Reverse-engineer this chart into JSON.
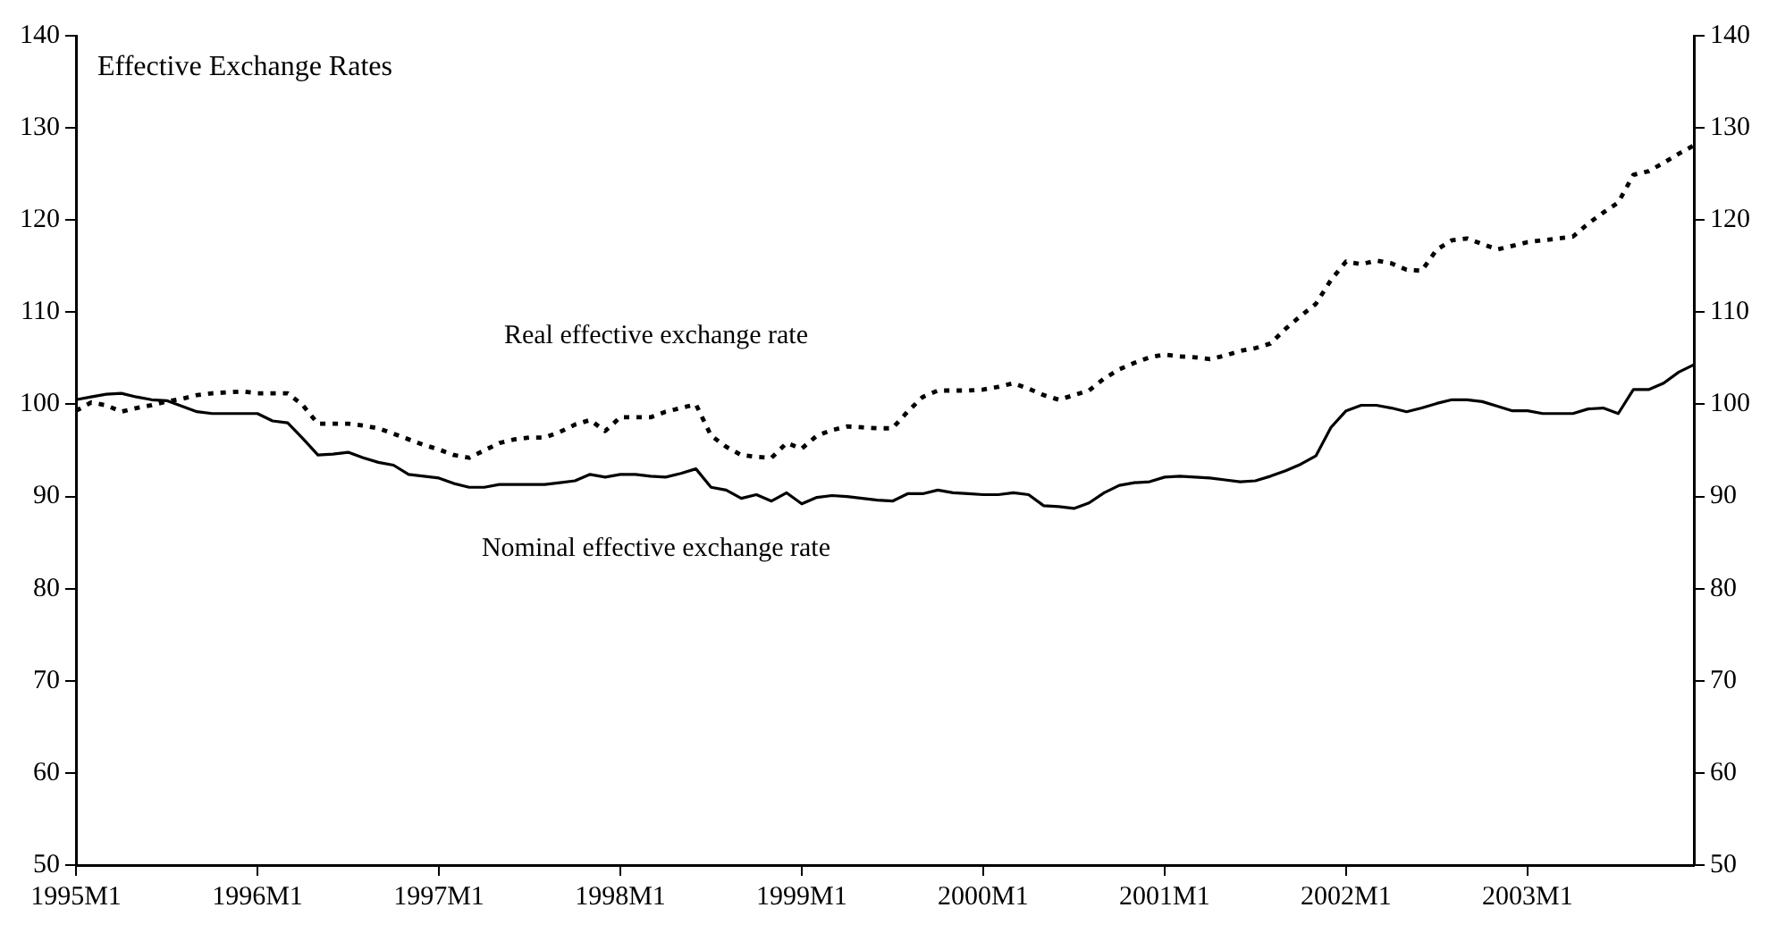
{
  "chart_data": {
    "type": "line",
    "title": "Effective Exchange Rates",
    "categories": [
      "1995M1",
      null,
      null,
      null,
      null,
      null,
      null,
      null,
      null,
      null,
      null,
      null,
      "1996M1",
      null,
      null,
      null,
      null,
      null,
      null,
      null,
      null,
      null,
      null,
      null,
      "1997M1",
      null,
      null,
      null,
      null,
      null,
      null,
      null,
      null,
      null,
      null,
      null,
      "1998M1",
      null,
      null,
      null,
      null,
      null,
      null,
      null,
      null,
      null,
      null,
      null,
      "1999M1",
      null,
      null,
      null,
      null,
      null,
      null,
      null,
      null,
      null,
      null,
      null,
      "2000M1",
      null,
      null,
      null,
      null,
      null,
      null,
      null,
      null,
      null,
      null,
      null,
      "2001M1",
      null,
      null,
      null,
      null,
      null,
      null,
      null,
      null,
      null,
      null,
      null,
      "2002M1",
      null,
      null,
      null,
      null,
      null,
      null,
      null,
      null,
      null,
      null,
      null,
      "2003M1",
      null,
      null,
      null,
      null,
      null,
      null,
      null,
      null,
      null,
      null,
      null
    ],
    "series": [
      {
        "name": "Real effective exchange rate",
        "color": "#000000",
        "line_style": "dotted",
        "values": [
          99.3,
          100.2,
          99.9,
          99.2,
          99.6,
          99.9,
          100.3,
          100.6,
          101.0,
          101.2,
          101.3,
          101.4,
          101.2,
          101.2,
          101.2,
          99.9,
          97.9,
          97.9,
          97.9,
          97.7,
          97.4,
          96.8,
          96.2,
          95.6,
          95.1,
          94.5,
          94.2,
          95.0,
          95.8,
          96.2,
          96.4,
          96.4,
          97.0,
          97.8,
          98.3,
          97.1,
          98.6,
          98.6,
          98.6,
          99.2,
          99.6,
          100.0,
          96.6,
          95.4,
          94.5,
          94.3,
          94.2,
          95.8,
          95.2,
          96.6,
          97.2,
          97.6,
          97.5,
          97.4,
          97.4,
          99.2,
          100.8,
          101.5,
          101.5,
          101.5,
          101.6,
          101.9,
          102.3,
          101.7,
          101.0,
          100.5,
          101.0,
          101.5,
          102.8,
          103.8,
          104.5,
          105.1,
          105.4,
          105.2,
          105.1,
          104.9,
          105.3,
          105.8,
          106.1,
          106.6,
          108.2,
          109.6,
          110.9,
          113.5,
          115.5,
          115.2,
          115.6,
          115.3,
          114.6,
          114.5,
          116.8,
          117.8,
          118.0,
          117.4,
          116.8,
          117.2,
          117.6,
          117.8,
          118.0,
          118.2,
          119.6,
          120.8,
          121.9,
          124.9,
          125.3,
          126.2,
          127.2,
          128.1
        ]
      },
      {
        "name": "Nominal effective exchange rate",
        "color": "#000000",
        "line_style": "solid",
        "values": [
          100.5,
          100.8,
          101.1,
          101.2,
          100.8,
          100.5,
          100.4,
          99.8,
          99.2,
          99.0,
          99.0,
          99.0,
          99.0,
          98.2,
          98.0,
          96.3,
          94.5,
          94.6,
          94.8,
          94.2,
          93.7,
          93.4,
          92.4,
          92.2,
          92.0,
          91.4,
          91.0,
          91.0,
          91.3,
          91.3,
          91.3,
          91.3,
          91.5,
          91.7,
          92.4,
          92.1,
          92.4,
          92.4,
          92.2,
          92.1,
          92.5,
          93.0,
          91.0,
          90.7,
          89.8,
          90.2,
          89.5,
          90.4,
          89.2,
          89.9,
          90.1,
          90.0,
          89.8,
          89.6,
          89.5,
          90.3,
          90.3,
          90.7,
          90.4,
          90.3,
          90.2,
          90.2,
          90.4,
          90.2,
          89.0,
          88.9,
          88.7,
          89.3,
          90.4,
          91.2,
          91.5,
          91.6,
          92.1,
          92.2,
          92.1,
          92.0,
          91.8,
          91.6,
          91.7,
          92.2,
          92.8,
          93.5,
          94.4,
          97.5,
          99.3,
          99.9,
          99.9,
          99.6,
          99.2,
          99.6,
          100.1,
          100.5,
          100.5,
          100.3,
          99.8,
          99.3,
          99.3,
          99.0,
          99.0,
          99.0,
          99.5,
          99.6,
          99.0,
          101.6,
          101.6,
          102.3,
          103.5,
          104.3
        ]
      }
    ],
    "ylim": [
      50,
      140
    ],
    "yticks": [
      50,
      60,
      70,
      80,
      90,
      100,
      110,
      120,
      130,
      140
    ],
    "y2lim": [
      50,
      140
    ],
    "y2ticks": [
      50,
      60,
      70,
      80,
      90,
      100,
      110,
      120,
      130,
      140
    ],
    "grid": false,
    "legend": false,
    "marker": "none"
  }
}
